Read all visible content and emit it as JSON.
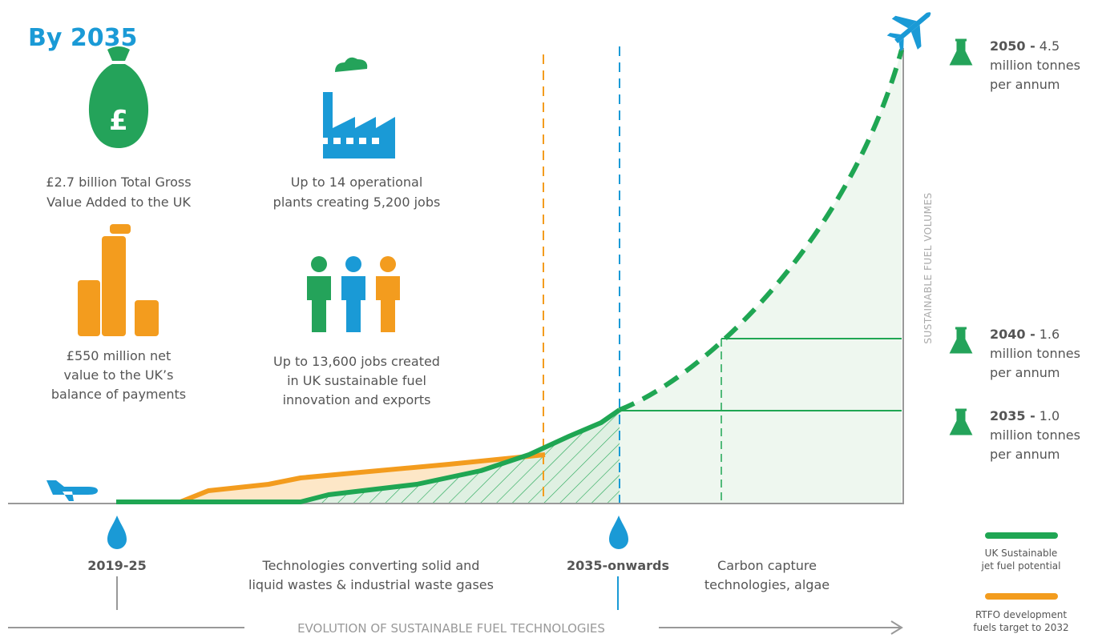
{
  "header": {
    "title": "By 2035"
  },
  "stats": [
    {
      "lines": [
        "£2.7 billion Total Gross",
        "Value Added to the UK"
      ]
    },
    {
      "lines": [
        "Up to 14 operational",
        "plants creating 5,200 jobs"
      ]
    },
    {
      "lines": [
        "£550 million net",
        "value to the UK’s",
        "balance of payments"
      ]
    },
    {
      "lines": [
        "Up to 13,600 jobs created",
        "in UK sustainable fuel",
        "innovation and exports"
      ]
    }
  ],
  "milestones": [
    {
      "year": "2050 -",
      "value": "4.5",
      "lines": [
        "million tonnes",
        "per annum"
      ]
    },
    {
      "year": "2040 -",
      "value": "1.6",
      "lines": [
        "million tonnes",
        "per annum"
      ]
    },
    {
      "year": "2035 -",
      "value": "1.0",
      "lines": [
        "million tonnes",
        "per annum"
      ]
    }
  ],
  "axis_label": "SUSTAINABLE FUEL VOLUMES",
  "timeline": {
    "phases": [
      {
        "label": "2019-25",
        "lines": [
          "Technologies converting solid and",
          "liquid wastes & industrial waste gases"
        ]
      },
      {
        "label": "2035-onwards",
        "lines": [
          "Carbon capture",
          "technologies, algae"
        ]
      }
    ],
    "caption": "EVOLUTION OF SUSTAINABLE FUEL TECHNOLOGIES"
  },
  "legend": [
    {
      "lines": [
        "UK Sustainable",
        "jet fuel potential"
      ]
    },
    {
      "lines": [
        "RTFO development",
        "fuels target to 2032"
      ]
    }
  ]
}
